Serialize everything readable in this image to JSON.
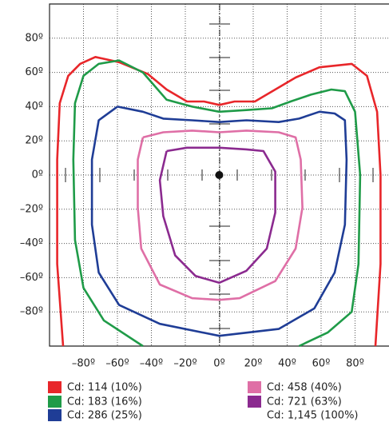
{
  "chart_data": {
    "type": "line",
    "xlim": [
      -100,
      100
    ],
    "ylim": [
      -100,
      100
    ],
    "grid": true,
    "xticks": [
      {
        "value": -80,
        "label": "–80º"
      },
      {
        "value": -60,
        "label": "–60º"
      },
      {
        "value": -40,
        "label": "–40º"
      },
      {
        "value": -20,
        "label": "–20º"
      },
      {
        "value": 0,
        "label": "0º"
      },
      {
        "value": 20,
        "label": "20º"
      },
      {
        "value": 40,
        "label": "40º"
      },
      {
        "value": 60,
        "label": "60º"
      },
      {
        "value": 80,
        "label": "80º"
      }
    ],
    "yticks": [
      {
        "value": -80,
        "label": "–80º"
      },
      {
        "value": -60,
        "label": "–60º"
      },
      {
        "value": -40,
        "label": "–40º"
      },
      {
        "value": -20,
        "label": "–20º"
      },
      {
        "value": 0,
        "label": "0º"
      },
      {
        "value": 20,
        "label": "20º"
      },
      {
        "value": 40,
        "label": "40º"
      },
      {
        "value": 60,
        "label": "60º"
      },
      {
        "value": 80,
        "label": "80º"
      }
    ],
    "series": [
      {
        "name": "Cd: 114 (10%)",
        "color": "#e8262a",
        "x": [
          -92,
          -95.5,
          -95.5,
          -94,
          -89,
          -82,
          -73,
          -59,
          -42,
          -31,
          -19,
          -9,
          0,
          9,
          21,
          33,
          45,
          59,
          78,
          87,
          93,
          95,
          95,
          92
        ],
        "values": [
          -100,
          -52,
          9,
          42,
          58,
          65,
          69,
          66,
          59,
          50,
          43,
          43,
          41,
          43,
          43,
          50,
          57,
          63,
          65,
          58,
          37,
          0,
          -52,
          -100
        ]
      },
      {
        "name": "Cd: 183 (16%)",
        "color": "#1f9b48",
        "x": [
          -45,
          -68,
          -80,
          -85,
          -86,
          -85,
          -80,
          -71,
          -59,
          -45,
          -31,
          -16,
          0,
          16,
          31,
          42,
          54,
          66,
          74,
          80,
          83,
          82,
          78,
          64,
          47
        ],
        "values": [
          -100,
          -85,
          -66,
          -38,
          9,
          42,
          58,
          65,
          67,
          60,
          44,
          40,
          37,
          38,
          39,
          43,
          47,
          50,
          49,
          37,
          0,
          -52,
          -80,
          -92,
          -100
        ]
      },
      {
        "name": "Cd: 286 (25%)",
        "color": "#1f3d96",
        "x": [
          -60,
          -71,
          -75,
          -75,
          -71,
          -59,
          -35,
          0,
          35,
          56,
          68,
          74,
          75,
          74,
          68,
          59,
          47,
          35,
          16,
          0,
          -16,
          -33,
          -45,
          -60
        ],
        "values": [
          40,
          32,
          9,
          -29,
          -57,
          -76,
          -87,
          -94,
          -90,
          -78,
          -57,
          -29,
          9,
          32,
          36,
          37,
          33,
          31,
          32,
          31,
          32,
          33,
          37,
          40
        ]
      },
      {
        "name": "Cd: 458 (40%)",
        "color": "#df6fa6",
        "x": [
          -45,
          -33,
          -16,
          0,
          16,
          35,
          45,
          48,
          49,
          45,
          33,
          12,
          0,
          -16,
          -35,
          -46,
          -48,
          -48,
          -45
        ],
        "values": [
          22,
          25,
          26,
          25,
          26,
          25,
          22,
          9,
          -19,
          -43,
          -62,
          -72,
          -73,
          -72,
          -64,
          -43,
          -19,
          9,
          22
        ]
      },
      {
        "name": "Cd: 721 (63%)",
        "color": "#8b2a8f",
        "x": [
          -31,
          -19,
          0,
          16,
          26,
          33,
          33,
          28,
          16,
          0,
          -14,
          -26,
          -33,
          -35,
          -31
        ],
        "values": [
          14,
          16,
          16,
          15,
          14,
          2,
          -22,
          -43,
          -56,
          -63,
          -59,
          -47,
          -24,
          -3,
          14
        ]
      },
      {
        "name": "Cd: 1,145 (100%)",
        "color": "#111111",
        "x": [
          0
        ],
        "values": [
          0
        ]
      }
    ]
  }
}
